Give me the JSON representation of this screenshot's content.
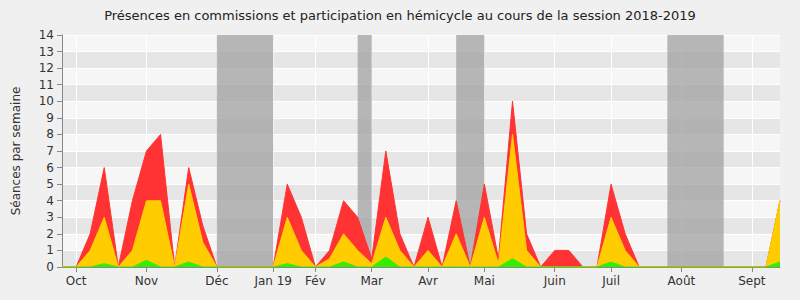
{
  "chart_data": {
    "type": "area",
    "title": "Présences en commissions et participation en hémicycle au cours de la session 2018-2019",
    "y_label": "Séances par semaine",
    "categories": [
      null,
      "Oct",
      null,
      null,
      null,
      null,
      "Nov",
      null,
      null,
      null,
      null,
      "Déc",
      null,
      null,
      null,
      "Jan 19",
      null,
      null,
      "Fév",
      null,
      null,
      null,
      "Mar",
      null,
      null,
      null,
      "Avr",
      null,
      null,
      null,
      "Mai",
      null,
      null,
      null,
      null,
      "Juin",
      null,
      null,
      null,
      "Juil",
      null,
      null,
      null,
      null,
      "Août",
      null,
      null,
      null,
      null,
      "Sept",
      null,
      null
    ],
    "series": [
      {
        "color": "#ff3333",
        "values": [
          0,
          0,
          2,
          6,
          0,
          4,
          7,
          8,
          0,
          6,
          2.5,
          0,
          0,
          0,
          0,
          0,
          5,
          3,
          0,
          1,
          4,
          3,
          0.5,
          7,
          2,
          0,
          3,
          0,
          4,
          0,
          5,
          0.5,
          10,
          2,
          0,
          1,
          1,
          0,
          0,
          5,
          2,
          0,
          0,
          0,
          0,
          0,
          0,
          0,
          0,
          0,
          0,
          4
        ]
      },
      {
        "color": "#ffcc00",
        "values": [
          0,
          0,
          1,
          3,
          0,
          1,
          4,
          4,
          0,
          5,
          1.5,
          0,
          0,
          0,
          0,
          0,
          3,
          1,
          0,
          0.5,
          2,
          1,
          0.2,
          3,
          1,
          0,
          1,
          0,
          2,
          0,
          3,
          0.2,
          8,
          1,
          0,
          0,
          0,
          0,
          0,
          3,
          1,
          0,
          0,
          0,
          0,
          0,
          0,
          0,
          0,
          0,
          0,
          4
        ]
      },
      {
        "color": "#33ee00",
        "values": [
          0,
          0,
          0,
          0.2,
          0,
          0,
          0.4,
          0,
          0,
          0.3,
          0,
          0,
          0,
          0,
          0,
          0,
          0.2,
          0,
          0,
          0,
          0.3,
          0,
          0,
          0.6,
          0,
          0,
          0,
          0,
          0,
          0,
          0,
          0,
          0.5,
          0,
          0,
          0,
          0,
          0,
          0,
          0.3,
          0,
          0,
          0,
          0,
          0,
          0,
          0,
          0,
          0,
          0,
          0,
          0.3
        ]
      }
    ],
    "shaded_periods": [
      [
        11,
        15
      ],
      [
        21,
        22
      ],
      [
        28,
        30
      ],
      [
        43,
        47
      ]
    ],
    "ylim": [
      0,
      14
    ],
    "yticks": [
      0,
      1,
      2,
      3,
      4,
      5,
      6,
      7,
      8,
      9,
      10,
      11,
      12,
      13,
      14
    ],
    "grid": true
  }
}
